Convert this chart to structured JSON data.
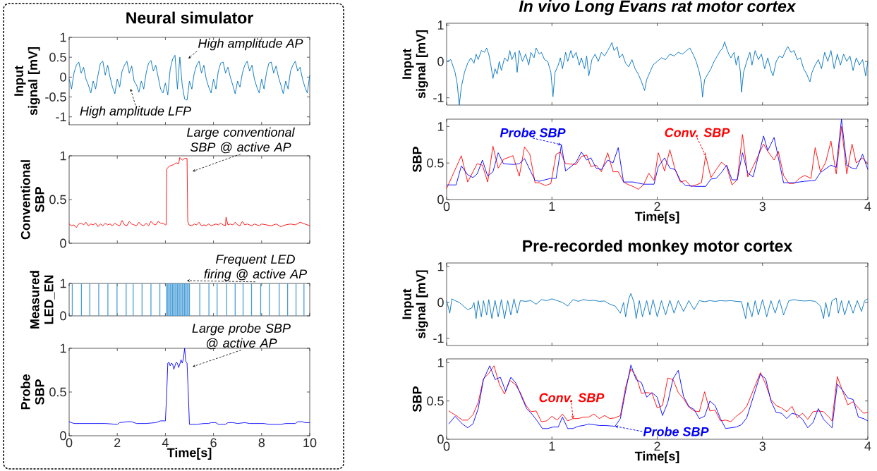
{
  "chart_data": [
    {
      "type": "line",
      "title": "Neural simulator",
      "ylabel": "Input signal [mV]",
      "xlim": [
        0,
        10
      ],
      "ylim": [
        -1.2,
        1
      ],
      "xticks": [
        0,
        2,
        4,
        6,
        8,
        10
      ],
      "yticks": [
        -1,
        -0.5,
        0,
        0.5,
        1
      ],
      "tick_labels": "y",
      "x": [
        0,
        0.1,
        0.2,
        0.3,
        0.4,
        0.5,
        0.6,
        0.7,
        0.8,
        0.9,
        1,
        1.1,
        1.2,
        1.3,
        1.4,
        1.5,
        1.6,
        1.7,
        1.8,
        1.9,
        2,
        2.1,
        2.2,
        2.3,
        2.4,
        2.5,
        2.6,
        2.7,
        2.8,
        2.9,
        3,
        3.1,
        3.2,
        3.3,
        3.4,
        3.5,
        3.6,
        3.7,
        3.8,
        3.9,
        4,
        4.1,
        4.2,
        4.3,
        4.4,
        4.5,
        4.6,
        4.7,
        4.8,
        4.9,
        5,
        5.1,
        5.2,
        5.3,
        5.4,
        5.5,
        5.6,
        5.7,
        5.8,
        5.9,
        6,
        6.1,
        6.2,
        6.3,
        6.4,
        6.5,
        6.6,
        6.7,
        6.8,
        6.9,
        7,
        7.1,
        7.2,
        7.3,
        7.4,
        7.5,
        7.6,
        7.7,
        7.8,
        7.9,
        8,
        8.1,
        8.2,
        8.3,
        8.4,
        8.5,
        8.6,
        8.7,
        8.8,
        8.9,
        9,
        9.1,
        9.2,
        9.3,
        9.4,
        9.5,
        9.6,
        9.7,
        9.8,
        9.9,
        10
      ],
      "series": [
        {
          "color": "#0072bd",
          "values": [
            -0.05,
            -0.3,
            0.1,
            0.3,
            0.38,
            0.1,
            0.25,
            -0.05,
            -0.2,
            -0.4,
            -0.1,
            -0.3,
            0.05,
            0.35,
            0.4,
            0.05,
            0.3,
            0.0,
            -0.25,
            -0.42,
            -0.05,
            -0.25,
            0.15,
            0.3,
            0.4,
            0.1,
            0.28,
            -0.1,
            -0.2,
            -0.38,
            -0.1,
            -0.3,
            0.1,
            0.35,
            0.42,
            0.15,
            0.3,
            0.0,
            -0.3,
            -0.4,
            -0.15,
            -0.45,
            0.2,
            0.45,
            0.55,
            -0.3,
            0.5,
            -0.2,
            -0.55,
            -0.58,
            -0.1,
            -0.3,
            0.1,
            0.3,
            0.4,
            0.1,
            0.3,
            -0.05,
            -0.25,
            -0.4,
            -0.05,
            -0.3,
            0.15,
            0.35,
            0.38,
            0.1,
            0.25,
            0.0,
            -0.2,
            -0.42,
            -0.1,
            -0.25,
            0.1,
            0.3,
            0.4,
            0.15,
            0.3,
            -0.05,
            -0.25,
            -0.4,
            -0.05,
            -0.3,
            0.1,
            0.35,
            0.38,
            0.1,
            0.28,
            0.0,
            -0.2,
            -0.42,
            -0.1,
            -0.3,
            0.15,
            0.3,
            0.4,
            0.15,
            0.25,
            -0.05,
            -0.25,
            -0.4,
            0.05
          ]
        }
      ],
      "annotations": [
        "High amplitude AP",
        "High amplitude LFP"
      ]
    },
    {
      "type": "line",
      "ylabel": "Conventional SBP",
      "xlim": [
        0,
        10
      ],
      "ylim": [
        0,
        1
      ],
      "xticks": [
        0,
        2,
        4,
        6,
        8,
        10
      ],
      "yticks": [
        0,
        0.5,
        1
      ],
      "tick_labels": "y",
      "x": [
        0,
        0.1,
        0.2,
        0.3,
        0.4,
        0.5,
        0.6,
        0.7,
        0.8,
        0.9,
        1.0,
        1.1,
        1.2,
        1.3,
        1.4,
        1.5,
        1.6,
        1.7,
        1.8,
        1.9,
        2.0,
        2.1,
        2.2,
        2.3,
        2.4,
        2.5,
        2.6,
        2.7,
        2.8,
        2.9,
        3.0,
        3.1,
        3.2,
        3.3,
        3.4,
        3.5,
        3.6,
        3.7,
        3.8,
        3.9,
        4.0,
        4.03,
        4.06,
        4.15,
        4.25,
        4.35,
        4.45,
        4.55,
        4.6,
        4.7,
        4.8,
        4.9,
        4.93,
        4.98,
        5.1,
        5.2,
        5.3,
        5.4,
        5.5,
        5.6,
        5.7,
        5.8,
        5.9,
        6.0,
        6.1,
        6.2,
        6.3,
        6.4,
        6.5,
        6.52,
        6.6,
        6.7,
        6.8,
        6.9,
        7.0,
        7.1,
        7.2,
        7.3,
        7.4,
        7.5,
        7.6,
        7.7,
        7.8,
        7.9,
        8.0,
        8.2,
        8.4,
        8.6,
        8.8,
        9.0,
        9.2,
        9.4,
        9.6,
        9.8,
        10
      ],
      "series": [
        {
          "color": "#ff0000",
          "values": [
            0.22,
            0.2,
            0.21,
            0.18,
            0.22,
            0.23,
            0.21,
            0.24,
            0.2,
            0.22,
            0.21,
            0.23,
            0.19,
            0.22,
            0.2,
            0.23,
            0.21,
            0.22,
            0.2,
            0.23,
            0.21,
            0.2,
            0.26,
            0.21,
            0.2,
            0.25,
            0.22,
            0.21,
            0.2,
            0.24,
            0.21,
            0.2,
            0.23,
            0.2,
            0.25,
            0.22,
            0.21,
            0.25,
            0.23,
            0.23,
            0.21,
            0.21,
            0.85,
            0.88,
            0.89,
            0.9,
            0.92,
            0.91,
            0.98,
            0.95,
            0.97,
            0.97,
            0.25,
            0.21,
            0.2,
            0.22,
            0.21,
            0.24,
            0.2,
            0.21,
            0.2,
            0.22,
            0.2,
            0.21,
            0.22,
            0.21,
            0.23,
            0.21,
            0.2,
            0.3,
            0.21,
            0.22,
            0.21,
            0.24,
            0.21,
            0.2,
            0.25,
            0.21,
            0.22,
            0.21,
            0.2,
            0.22,
            0.21,
            0.2,
            0.22,
            0.21,
            0.2,
            0.22,
            0.19,
            0.21,
            0.22,
            0.21,
            0.24,
            0.22,
            0.2
          ]
        }
      ],
      "annotations": [
        "Large conventional SBP @ active AP"
      ]
    },
    {
      "type": "bar",
      "ylabel": "Measured LED_EN",
      "xlim": [
        0,
        10
      ],
      "ylim": [
        0,
        1
      ],
      "xticks": [
        0,
        2,
        4,
        6,
        8,
        10
      ],
      "yticks": [
        0,
        1
      ],
      "tick_labels": "y",
      "x": [
        0.13,
        0.51,
        0.86,
        1.23,
        1.61,
        1.99,
        2.37,
        2.66,
        3.03,
        3.4,
        3.77,
        4.05,
        4.1,
        4.15,
        4.2,
        4.25,
        4.3,
        4.35,
        4.4,
        4.45,
        4.5,
        4.55,
        4.6,
        4.65,
        4.7,
        4.75,
        4.8,
        4.85,
        4.9,
        4.95,
        5.0,
        5.43,
        5.81,
        6.15,
        6.55,
        6.9,
        7.23,
        7.58,
        7.96,
        8.32,
        8.73,
        9.08,
        9.43,
        9.76
      ],
      "series": [
        {
          "color": "#4a9fd8",
          "values": [
            1,
            1,
            1,
            1,
            1,
            1,
            1,
            1,
            1,
            1,
            1,
            1,
            1,
            1,
            1,
            1,
            1,
            1,
            1,
            1,
            1,
            1,
            1,
            1,
            1,
            1,
            1,
            1,
            1,
            1,
            1,
            1,
            1,
            1,
            1,
            1,
            1,
            1,
            1,
            1,
            1,
            1,
            1,
            1
          ]
        }
      ],
      "annotations": [
        "Frequent LED firing @ active AP"
      ]
    },
    {
      "type": "line",
      "ylabel": "Probe SBP",
      "xlabel": "Time[s]",
      "xlim": [
        0,
        10
      ],
      "ylim": [
        0,
        1
      ],
      "xticks": [
        0,
        2,
        4,
        6,
        8,
        10
      ],
      "yticks": [
        0,
        0.5,
        1
      ],
      "x": [
        0,
        0.1,
        0.2,
        0.6,
        1.0,
        1.5,
        2.0,
        2.1,
        2.4,
        2.6,
        2.8,
        3.2,
        3.6,
        3.8,
        4.0,
        4.05,
        4.1,
        4.15,
        4.2,
        4.25,
        4.3,
        4.35,
        4.4,
        4.45,
        4.5,
        4.55,
        4.6,
        4.65,
        4.7,
        4.75,
        4.8,
        4.85,
        4.9,
        4.95,
        5.0,
        5.3,
        5.6,
        5.8,
        5.9,
        6.1,
        6.2,
        6.5,
        6.6,
        6.8,
        7.0,
        7.3,
        7.5,
        7.8,
        8.1,
        8.3,
        8.8,
        9.0,
        9.4,
        9.5,
        9.7,
        9.8,
        10
      ],
      "series": [
        {
          "color": "#0000ff",
          "values": [
            0.16,
            0.15,
            0.14,
            0.14,
            0.14,
            0.14,
            0.13,
            0.15,
            0.16,
            0.16,
            0.14,
            0.14,
            0.15,
            0.17,
            0.17,
            0.45,
            0.83,
            0.84,
            0.8,
            0.83,
            0.82,
            0.76,
            0.8,
            0.84,
            0.83,
            0.78,
            0.82,
            0.87,
            0.83,
            0.88,
            1.0,
            0.85,
            0.83,
            0.5,
            0.13,
            0.13,
            0.14,
            0.14,
            0.15,
            0.15,
            0.13,
            0.13,
            0.15,
            0.15,
            0.14,
            0.15,
            0.14,
            0.14,
            0.14,
            0.13,
            0.13,
            0.14,
            0.14,
            0.16,
            0.16,
            0.15,
            0.15
          ]
        }
      ],
      "annotations": [
        "Large probe SBP @ active AP"
      ]
    },
    {
      "type": "line",
      "title": "In vivo Long Evans rat motor cortex",
      "ylabel": "Input signal [mV]",
      "xlim": [
        0,
        4
      ],
      "ylim": [
        -1.2,
        1.05
      ],
      "xticks": [
        0,
        1,
        2,
        3,
        4
      ],
      "yticks": [
        -1,
        0,
        1
      ],
      "tick_labels": "y",
      "x": [
        0,
        0.04,
        0.08,
        0.1,
        0.12,
        0.14,
        0.17,
        0.2,
        0.23,
        0.26,
        0.28,
        0.3,
        0.33,
        0.36,
        0.38,
        0.4,
        0.42,
        0.44,
        0.46,
        0.48,
        0.5,
        0.52,
        0.55,
        0.58,
        0.6,
        0.62,
        0.65,
        0.67,
        0.69,
        0.72,
        0.75,
        0.78,
        0.8,
        0.83,
        0.85,
        0.88,
        0.9,
        0.93,
        0.96,
        0.99,
        1.01,
        1.03,
        1.06,
        1.08,
        1.1,
        1.13,
        1.15,
        1.18,
        1.2,
        1.23,
        1.26,
        1.28,
        1.31,
        1.33,
        1.35,
        1.38,
        1.41,
        1.44,
        1.47,
        1.5,
        1.53,
        1.55,
        1.57,
        1.59,
        1.62,
        1.64,
        1.67,
        1.7,
        1.73,
        1.76,
        1.79,
        1.82,
        1.85,
        1.88,
        1.9,
        1.93,
        1.96,
        2.0,
        2.04,
        2.08,
        2.12,
        2.16,
        2.2,
        2.24,
        2.28,
        2.31,
        2.34,
        2.37,
        2.4,
        2.42,
        2.43,
        2.45,
        2.48,
        2.51,
        2.54,
        2.57,
        2.6,
        2.62,
        2.64,
        2.66,
        2.68,
        2.7,
        2.73,
        2.75,
        2.77,
        2.79,
        2.8,
        2.82,
        2.85,
        2.88,
        2.9,
        2.93,
        2.96,
        2.99,
        3.02,
        3.05,
        3.08,
        3.1,
        3.13,
        3.16,
        3.19,
        3.22,
        3.24,
        3.27,
        3.3,
        3.33,
        3.36,
        3.39,
        3.42,
        3.45,
        3.47,
        3.5,
        3.53,
        3.56,
        3.59,
        3.62,
        3.65,
        3.68,
        3.71,
        3.74,
        3.77,
        3.8,
        3.83,
        3.86,
        3.89,
        3.92,
        3.95,
        3.98,
        4.0
      ],
      "series": [
        {
          "color": "#0072bd",
          "values": [
            0,
            0.05,
            -0.3,
            -0.6,
            -1.2,
            -0.7,
            -0.3,
            -0.05,
            0.1,
            -0.05,
            0.2,
            0.05,
            0.3,
            0.25,
            0.37,
            0.2,
            -0.1,
            -0.47,
            -0.2,
            -0.35,
            0.0,
            -0.25,
            0.1,
            0.0,
            0.3,
            0.05,
            0.25,
            -0.3,
            0.3,
            0.0,
            0.2,
            -0.1,
            0.25,
            0.1,
            0.37,
            0.2,
            0.25,
            0.05,
            0.0,
            -0.3,
            -0.97,
            -0.3,
            -0.1,
            0.1,
            -0.2,
            0.25,
            0.0,
            0.3,
            0.1,
            0.25,
            -0.1,
            0.1,
            -0.2,
            0.15,
            -0.4,
            0.05,
            0.2,
            0.0,
            0.25,
            0.15,
            0.3,
            0.4,
            0.52,
            0.3,
            0.4,
            0.1,
            0.2,
            -0.05,
            -0.15,
            0.05,
            -0.2,
            -0.35,
            -0.55,
            -0.8,
            -0.5,
            -0.3,
            -0.1,
            0.0,
            0.1,
            0.05,
            0.2,
            0.15,
            0.25,
            0.2,
            0.3,
            0.37,
            0.2,
            0.0,
            -0.3,
            -0.6,
            -0.98,
            -0.5,
            -0.35,
            -0.2,
            0.0,
            0.15,
            0.3,
            0.35,
            0.54,
            0.35,
            0.2,
            0.1,
            0.25,
            -0.1,
            0.15,
            -0.3,
            -0.85,
            -0.3,
            0.0,
            0.25,
            -0.1,
            0.3,
            0.05,
            0.2,
            -0.2,
            0.1,
            -0.25,
            -0.4,
            0.0,
            0.15,
            0.1,
            0.3,
            0.41,
            0.25,
            0.3,
            0.05,
            0.1,
            -0.2,
            -0.35,
            -0.56,
            -0.3,
            -0.1,
            0.05,
            -0.2,
            0.25,
            0.0,
            0.3,
            -0.2,
            0.2,
            -0.1,
            0.2,
            0.0,
            0.15,
            -0.25,
            0.1,
            -0.1,
            0.05,
            -0.4,
            0.0
          ]
        }
      ]
    },
    {
      "type": "line",
      "ylabel": "SBP",
      "xlabel": "Time[s]",
      "xlim": [
        0,
        4
      ],
      "ylim": [
        0,
        1.1
      ],
      "xticks": [
        0,
        1,
        2,
        3,
        4
      ],
      "yticks": [
        0,
        0.5,
        1
      ],
      "series": [
        {
          "name": "Conv. SBP",
          "color": "#ff0000",
          "x": [
            0,
            0.14,
            0.2,
            0.29,
            0.34,
            0.39,
            0.44,
            0.49,
            0.54,
            0.63,
            0.69,
            0.74,
            0.79,
            0.84,
            0.88,
            0.94,
            0.99,
            1.04,
            1.08,
            1.13,
            1.23,
            1.28,
            1.33,
            1.37,
            1.42,
            1.47,
            1.53,
            1.58,
            1.63,
            1.68,
            1.73,
            1.77,
            1.82,
            1.87,
            1.92,
            1.97,
            2.01,
            2.07,
            2.12,
            2.17,
            2.22,
            2.27,
            2.32,
            2.37,
            2.42,
            2.46,
            2.51,
            2.56,
            2.61,
            2.66,
            2.71,
            2.76,
            2.81,
            2.86,
            2.91,
            3.01,
            3.05,
            3.11,
            3.15,
            3.2,
            3.25,
            3.3,
            3.35,
            3.4,
            3.46,
            3.5,
            3.55,
            3.6,
            3.65,
            3.7,
            3.75,
            3.8,
            3.85,
            3.89,
            3.95,
            4.0
          ],
          "values": [
            0.15,
            0.6,
            0.24,
            0.49,
            0.47,
            0.24,
            0.73,
            0.43,
            0.55,
            0.6,
            0.32,
            0.72,
            0.62,
            0.23,
            0.23,
            0.19,
            0.22,
            0.62,
            0.65,
            0.49,
            0.48,
            0.59,
            0.61,
            0.45,
            0.47,
            0.38,
            0.64,
            0.38,
            0.38,
            0.24,
            0.2,
            0.18,
            0.14,
            0.2,
            0.36,
            0.26,
            0.64,
            0.39,
            0.68,
            0.41,
            0.24,
            0.26,
            0.18,
            0.2,
            0.23,
            0.6,
            0.3,
            0.41,
            0.51,
            0.45,
            0.2,
            0.27,
            0.89,
            0.31,
            0.45,
            0.76,
            0.66,
            0.54,
            0.66,
            0.33,
            0.22,
            0.22,
            0.29,
            0.33,
            0.29,
            0.71,
            0.38,
            0.51,
            0.8,
            0.35,
            1.0,
            0.35,
            0.76,
            0.5,
            0.57,
            0.49
          ]
        },
        {
          "name": "Probe SBP",
          "color": "#0000ff",
          "x": [
            0,
            0.09,
            0.14,
            0.2,
            0.25,
            0.29,
            0.34,
            0.39,
            0.44,
            0.49,
            0.54,
            0.63,
            0.69,
            0.74,
            0.84,
            0.88,
            0.99,
            1.04,
            1.09,
            1.13,
            1.23,
            1.28,
            1.33,
            1.37,
            1.42,
            1.47,
            1.53,
            1.58,
            1.63,
            1.68,
            1.77,
            1.87,
            1.97,
            2.01,
            2.07,
            2.12,
            2.17,
            2.22,
            2.27,
            2.37,
            2.46,
            2.51,
            2.56,
            2.61,
            2.66,
            2.71,
            2.76,
            2.81,
            2.86,
            2.91,
            3.01,
            3.05,
            3.11,
            3.2,
            3.3,
            3.4,
            3.5,
            3.55,
            3.65,
            3.7,
            3.75,
            3.8,
            3.85,
            3.89,
            3.95,
            4.0
          ],
          "values": [
            0.2,
            0.2,
            0.46,
            0.34,
            0.3,
            0.35,
            0.54,
            0.32,
            0.38,
            0.64,
            0.49,
            0.48,
            0.49,
            0.56,
            0.26,
            0.25,
            0.29,
            0.29,
            0.75,
            0.39,
            0.51,
            0.65,
            0.54,
            0.57,
            0.43,
            0.41,
            0.54,
            0.5,
            0.71,
            0.24,
            0.24,
            0.21,
            0.21,
            0.45,
            0.57,
            0.43,
            0.41,
            0.26,
            0.19,
            0.18,
            0.18,
            0.28,
            0.29,
            0.37,
            0.47,
            0.27,
            0.27,
            0.64,
            0.36,
            0.31,
            0.87,
            0.67,
            0.85,
            0.23,
            0.23,
            0.25,
            0.26,
            0.37,
            0.47,
            0.44,
            1.1,
            0.47,
            0.43,
            0.42,
            0.62,
            0.41
          ]
        }
      ]
    },
    {
      "type": "line",
      "title": "Pre-recorded monkey motor cortex",
      "ylabel": "Input signal [mV]",
      "xlim": [
        0,
        4
      ],
      "ylim": [
        -1.2,
        1.1
      ],
      "xticks": [
        0,
        1,
        2,
        3,
        4
      ],
      "yticks": [
        -1,
        0,
        1
      ],
      "tick_labels": "y",
      "x": [
        0,
        0.03,
        0.05,
        0.08,
        0.12,
        0.16,
        0.2,
        0.24,
        0.26,
        0.28,
        0.3,
        0.33,
        0.35,
        0.38,
        0.4,
        0.43,
        0.46,
        0.49,
        0.52,
        0.55,
        0.58,
        0.61,
        0.64,
        0.67,
        0.7,
        0.75,
        0.8,
        0.85,
        0.9,
        0.95,
        1.0,
        1.05,
        1.1,
        1.15,
        1.2,
        1.25,
        1.3,
        1.35,
        1.4,
        1.45,
        1.5,
        1.55,
        1.6,
        1.65,
        1.68,
        1.7,
        1.73,
        1.75,
        1.78,
        1.8,
        1.83,
        1.86,
        1.9,
        1.93,
        1.96,
        2.0,
        2.04,
        2.08,
        2.12,
        2.16,
        2.2,
        2.25,
        2.3,
        2.35,
        2.4,
        2.45,
        2.5,
        2.55,
        2.6,
        2.65,
        2.7,
        2.75,
        2.8,
        2.84,
        2.86,
        2.9,
        2.93,
        2.96,
        3.0,
        3.04,
        3.08,
        3.12,
        3.16,
        3.2,
        3.25,
        3.3,
        3.35,
        3.4,
        3.45,
        3.5,
        3.55,
        3.58,
        3.6,
        3.63,
        3.66,
        3.7,
        3.72,
        3.75,
        3.78,
        3.82,
        3.86,
        3.9,
        3.94,
        3.97,
        4.0
      ],
      "series": [
        {
          "color": "#0072bd",
          "values": [
            0.05,
            -0.3,
            0.1,
            0.05,
            0.0,
            -0.1,
            -0.2,
            -0.15,
            0.0,
            -0.45,
            0.05,
            -0.4,
            0.05,
            -0.35,
            0.08,
            -0.45,
            0.06,
            -0.4,
            0.08,
            -0.45,
            0.05,
            -0.35,
            0.1,
            -0.3,
            0.05,
            0.03,
            0.05,
            -0.05,
            0.08,
            0.05,
            0.1,
            0.05,
            0.0,
            -0.1,
            0.08,
            0.03,
            0.08,
            0.05,
            0.06,
            0.03,
            0.04,
            -0.05,
            -0.1,
            -0.3,
            0.0,
            -0.4,
            0.1,
            0.25,
            0.0,
            -0.45,
            0.05,
            -0.4,
            0.05,
            -0.35,
            0.08,
            -0.4,
            0.05,
            -0.35,
            0.06,
            -0.3,
            0.05,
            -0.25,
            0.05,
            -0.2,
            0.05,
            0.02,
            0.05,
            0.03,
            0.05,
            0.04,
            0.05,
            0.03,
            0.02,
            -0.45,
            0.0,
            -0.4,
            0.05,
            -0.35,
            0.08,
            -0.4,
            0.05,
            -0.3,
            0.08,
            -0.35,
            0.05,
            0.08,
            0.05,
            0.04,
            0.05,
            0.03,
            -0.1,
            -0.45,
            0.0,
            -0.4,
            0.05,
            0.12,
            -0.3,
            0.05,
            -0.35,
            0.05,
            -0.3,
            0.05,
            -0.25,
            0.05,
            0.1
          ]
        }
      ]
    },
    {
      "type": "line",
      "ylabel": "SBP",
      "xlabel": "Time[s]",
      "xlim": [
        0,
        4
      ],
      "ylim": [
        0,
        1.05
      ],
      "xticks": [
        0,
        1,
        2,
        3,
        4
      ],
      "yticks": [
        0,
        0.5,
        1
      ],
      "series": [
        {
          "name": "Conv. SBP",
          "color": "#ff0000",
          "x": [
            0.02,
            0.1,
            0.15,
            0.2,
            0.25,
            0.3,
            0.35,
            0.4,
            0.45,
            0.5,
            0.55,
            0.6,
            0.65,
            0.7,
            0.75,
            0.8,
            0.85,
            0.9,
            0.95,
            1.0,
            1.05,
            1.1,
            1.15,
            1.2,
            1.25,
            1.3,
            1.35,
            1.4,
            1.45,
            1.5,
            1.55,
            1.6,
            1.65,
            1.7,
            1.75,
            1.8,
            1.85,
            1.9,
            1.95,
            2.0,
            2.05,
            2.1,
            2.15,
            2.2,
            2.25,
            2.3,
            2.35,
            2.4,
            2.45,
            2.5,
            2.55,
            2.6,
            2.65,
            2.7,
            2.75,
            2.8,
            2.85,
            2.98,
            3.03,
            3.08,
            3.13,
            3.18,
            3.23,
            3.28,
            3.33,
            3.38,
            3.43,
            3.48,
            3.53,
            3.58,
            3.63,
            3.66,
            3.71,
            3.76,
            3.81,
            3.86,
            3.91,
            3.96,
            4.0
          ],
          "values": [
            0.37,
            0.3,
            0.25,
            0.25,
            0.32,
            0.48,
            0.79,
            0.86,
            0.96,
            0.72,
            0.59,
            0.77,
            0.72,
            0.61,
            0.45,
            0.36,
            0.37,
            0.23,
            0.24,
            0.3,
            0.25,
            0.33,
            0.24,
            0.27,
            0.27,
            0.29,
            0.29,
            0.33,
            0.27,
            0.31,
            0.27,
            0.28,
            0.31,
            0.68,
            0.92,
            0.82,
            0.6,
            0.61,
            0.6,
            0.41,
            0.44,
            0.8,
            0.78,
            0.61,
            0.53,
            0.42,
            0.37,
            0.36,
            0.62,
            0.37,
            0.38,
            0.24,
            0.25,
            0.23,
            0.3,
            0.35,
            0.43,
            0.87,
            0.72,
            0.52,
            0.44,
            0.41,
            0.36,
            0.43,
            0.28,
            0.34,
            0.26,
            0.36,
            0.37,
            0.36,
            0.29,
            0.24,
            0.82,
            0.63,
            0.45,
            0.49,
            0.41,
            0.34,
            0.35
          ]
        },
        {
          "name": "Probe SBP",
          "color": "#0000ff",
          "x": [
            0.02,
            0.08,
            0.15,
            0.2,
            0.25,
            0.3,
            0.35,
            0.41,
            0.46,
            0.51,
            0.56,
            0.61,
            0.66,
            0.71,
            0.76,
            0.81,
            0.86,
            0.91,
            0.96,
            1.01,
            1.06,
            1.1,
            1.15,
            1.2,
            1.25,
            1.3,
            1.35,
            1.4,
            1.45,
            1.5,
            1.6,
            1.65,
            1.7,
            1.75,
            1.8,
            1.85,
            1.9,
            1.95,
            2.0,
            2.05,
            2.1,
            2.15,
            2.2,
            2.25,
            2.3,
            2.35,
            2.4,
            2.45,
            2.5,
            2.55,
            2.6,
            2.65,
            2.7,
            2.75,
            2.8,
            2.85,
            2.98,
            3.03,
            3.08,
            3.13,
            3.18,
            3.23,
            3.28,
            3.33,
            3.38,
            3.43,
            3.48,
            3.53,
            3.58,
            3.63,
            3.66,
            3.71,
            3.76,
            3.81,
            3.86,
            3.91,
            3.96,
            4.0
          ],
          "values": [
            0.2,
            0.3,
            0.2,
            0.15,
            0.2,
            0.4,
            0.78,
            0.96,
            0.78,
            0.81,
            0.63,
            0.81,
            0.73,
            0.56,
            0.4,
            0.33,
            0.24,
            0.14,
            0.14,
            0.16,
            0.16,
            0.29,
            0.14,
            0.14,
            0.17,
            0.18,
            0.2,
            0.19,
            0.18,
            0.18,
            0.17,
            0.27,
            0.63,
            0.97,
            0.78,
            0.74,
            0.55,
            0.61,
            0.55,
            0.31,
            0.48,
            0.79,
            0.9,
            0.56,
            0.43,
            0.39,
            0.27,
            0.3,
            0.5,
            0.44,
            0.27,
            0.14,
            0.15,
            0.16,
            0.19,
            0.28,
            0.85,
            0.79,
            0.5,
            0.35,
            0.34,
            0.27,
            0.34,
            0.32,
            0.26,
            0.15,
            0.22,
            0.4,
            0.26,
            0.19,
            0.15,
            0.72,
            0.64,
            0.54,
            0.52,
            0.29,
            0.27,
            0.24
          ]
        }
      ]
    }
  ]
}
